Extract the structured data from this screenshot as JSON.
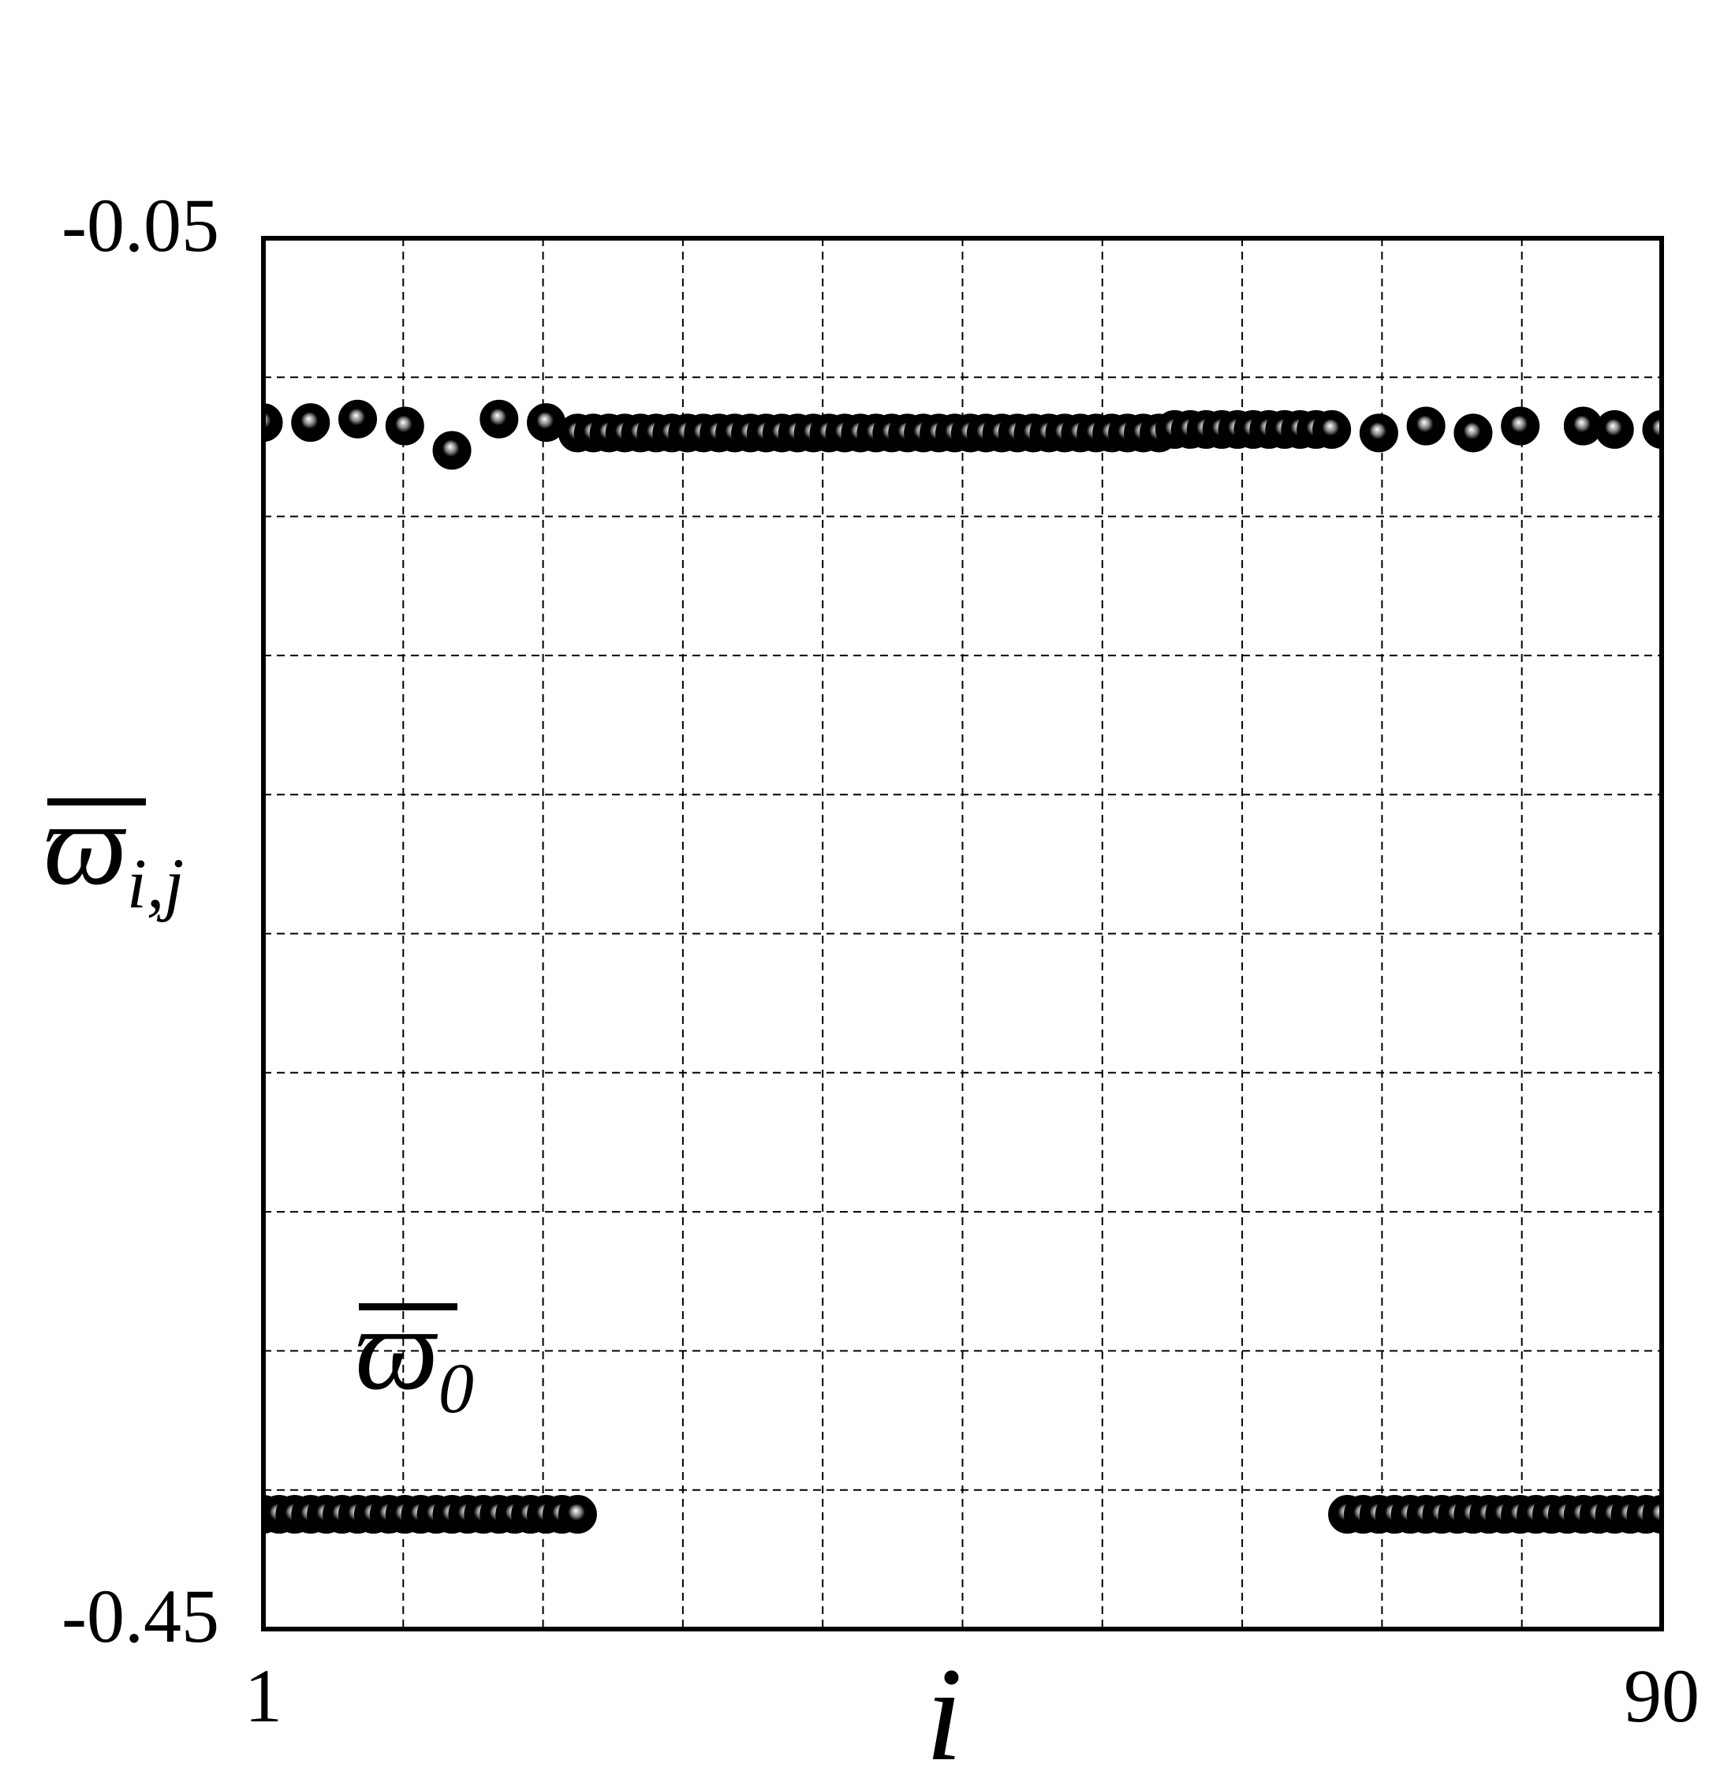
{
  "chart_data": {
    "type": "scatter",
    "xlabel": "i",
    "ylabel": {
      "symbol": "ϖ",
      "subscript": "i,j"
    },
    "annotation": {
      "symbol": "ϖ",
      "subscript": "0"
    },
    "xlim": [
      1,
      90
    ],
    "xticks": [
      1,
      90
    ],
    "ylim": [
      -0.45,
      -0.05
    ],
    "yticks": [
      -0.05,
      -0.45
    ],
    "grid": {
      "x_divisions": 10,
      "y_divisions": 10
    },
    "series": [
      {
        "color": "#000000",
        "x": [
          1,
          4,
          7,
          10,
          13,
          16,
          19,
          21,
          22,
          23,
          24,
          25,
          26,
          27,
          28,
          29,
          30,
          31,
          32,
          33,
          34,
          35,
          36,
          37,
          38,
          39,
          40,
          41,
          42,
          43,
          44,
          45,
          46,
          47,
          48,
          49,
          50,
          51,
          52,
          53,
          54,
          55,
          56,
          57,
          58,
          59,
          60,
          61,
          62,
          63,
          64,
          65,
          66,
          67,
          68,
          69,
          72,
          75,
          78,
          81,
          85,
          87,
          90
        ],
        "values": [
          -0.103,
          -0.103,
          -0.102,
          -0.104,
          -0.111,
          -0.102,
          -0.103,
          -0.106,
          -0.106,
          -0.106,
          -0.106,
          -0.106,
          -0.106,
          -0.106,
          -0.106,
          -0.106,
          -0.106,
          -0.106,
          -0.106,
          -0.106,
          -0.106,
          -0.106,
          -0.106,
          -0.106,
          -0.106,
          -0.106,
          -0.106,
          -0.106,
          -0.106,
          -0.106,
          -0.106,
          -0.106,
          -0.106,
          -0.106,
          -0.106,
          -0.106,
          -0.106,
          -0.106,
          -0.106,
          -0.106,
          -0.106,
          -0.106,
          -0.106,
          -0.106,
          -0.106,
          -0.105,
          -0.105,
          -0.105,
          -0.105,
          -0.105,
          -0.105,
          -0.105,
          -0.105,
          -0.105,
          -0.105,
          -0.105,
          -0.106,
          -0.104,
          -0.106,
          -0.104,
          -0.104,
          -0.105,
          -0.105
        ]
      },
      {
        "color": "#000000",
        "x": [
          1,
          2,
          3,
          4,
          5,
          6,
          7,
          8,
          9,
          10,
          11,
          12,
          13,
          14,
          15,
          16,
          17,
          18,
          19,
          20,
          21,
          70,
          71,
          72,
          73,
          74,
          75,
          76,
          77,
          78,
          79,
          80,
          81,
          82,
          83,
          84,
          85,
          86,
          87,
          88,
          89,
          90
        ],
        "values": [
          -0.417,
          -0.417,
          -0.417,
          -0.417,
          -0.417,
          -0.417,
          -0.417,
          -0.417,
          -0.417,
          -0.417,
          -0.417,
          -0.417,
          -0.417,
          -0.417,
          -0.417,
          -0.417,
          -0.417,
          -0.417,
          -0.417,
          -0.417,
          -0.417,
          -0.417,
          -0.417,
          -0.417,
          -0.417,
          -0.417,
          -0.417,
          -0.417,
          -0.417,
          -0.417,
          -0.417,
          -0.417,
          -0.417,
          -0.417,
          -0.417,
          -0.417,
          -0.417,
          -0.417,
          -0.417,
          -0.417,
          -0.417,
          -0.417
        ]
      }
    ]
  }
}
